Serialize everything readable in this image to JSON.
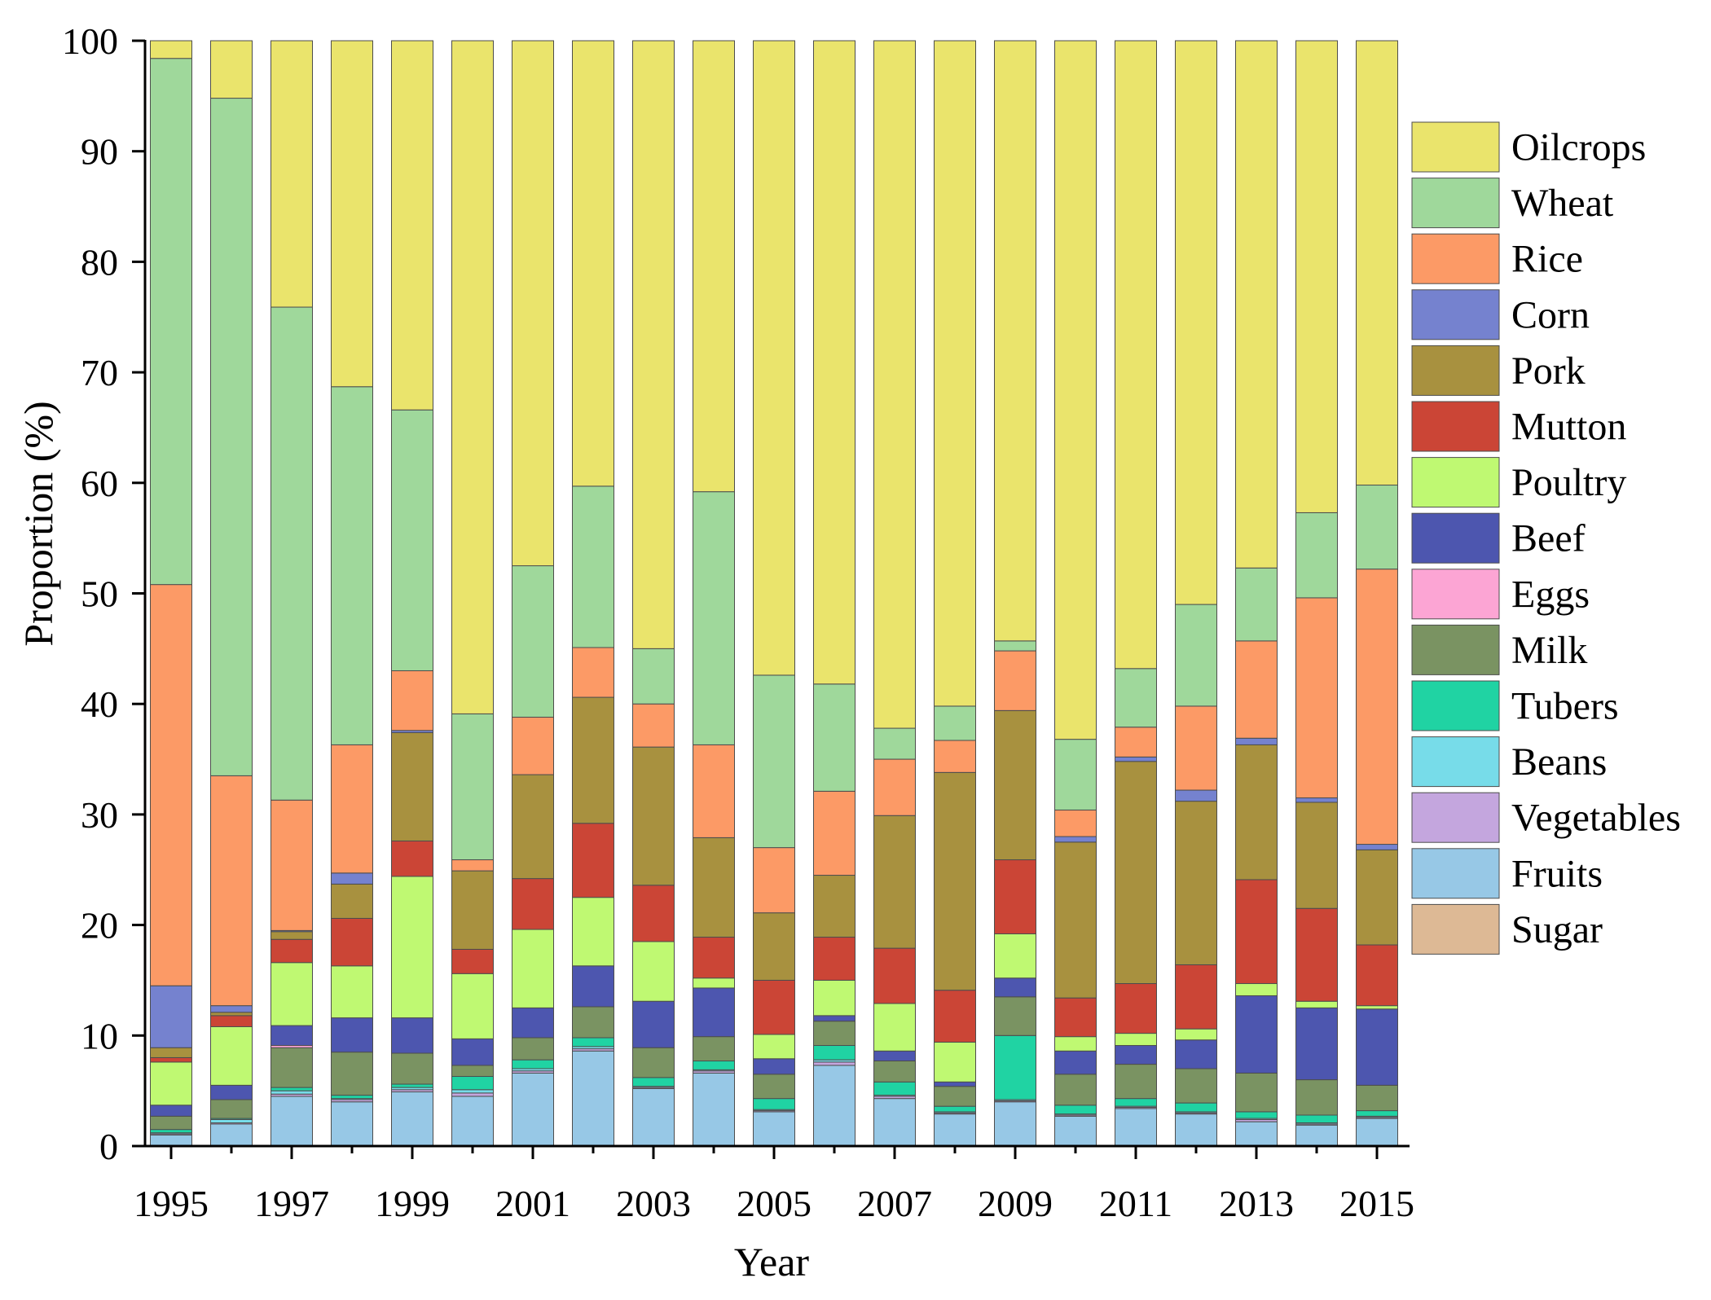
{
  "chart_data": {
    "type": "bar",
    "stacked": true,
    "xlabel": "Year",
    "ylabel": "Proportion (%)",
    "ylim": [
      0,
      100
    ],
    "y_ticks": [
      0,
      10,
      20,
      30,
      40,
      50,
      60,
      70,
      80,
      90,
      100
    ],
    "y_tick_labels": [
      "0",
      "10",
      "20",
      "30",
      "40",
      "50",
      "60",
      "70",
      "80",
      "90",
      "100"
    ],
    "x": [
      1995,
      1996,
      1997,
      1998,
      1999,
      2000,
      2001,
      2002,
      2003,
      2004,
      2005,
      2006,
      2007,
      2008,
      2009,
      2010,
      2011,
      2012,
      2013,
      2014,
      2015
    ],
    "x_tick_labels": [
      "1995",
      "1997",
      "1999",
      "2001",
      "2003",
      "2005",
      "2007",
      "2009",
      "2011",
      "2013",
      "2015"
    ],
    "grid": false,
    "legend_position": "right",
    "series": [
      {
        "name": "Sugar",
        "color": "#DDB995",
        "values": [
          0,
          0,
          0,
          0,
          0,
          0,
          0,
          0,
          0,
          0,
          0,
          0,
          0,
          0,
          0,
          0,
          0,
          0,
          0,
          0,
          0
        ]
      },
      {
        "name": "Fruits",
        "color": "#97C8E6",
        "values": [
          1.0,
          2.0,
          4.5,
          4.0,
          4.9,
          4.5,
          6.6,
          8.6,
          5.2,
          6.6,
          3.1,
          7.3,
          4.3,
          2.9,
          4.0,
          2.7,
          3.4,
          2.9,
          2.2,
          1.9,
          2.5
        ]
      },
      {
        "name": "Vegetables",
        "color": "#C4A6DE",
        "values": [
          0.1,
          0.1,
          0.2,
          0.2,
          0.2,
          0.3,
          0.2,
          0.2,
          0.1,
          0.2,
          0.1,
          0.3,
          0.2,
          0.1,
          0.1,
          0.1,
          0.1,
          0.1,
          0.2,
          0.1,
          0.1
        ]
      },
      {
        "name": "Beans",
        "color": "#77DCE9",
        "values": [
          0.1,
          0.3,
          0.3,
          0.1,
          0.2,
          0.3,
          0.2,
          0.2,
          0.1,
          0.1,
          0.1,
          0.2,
          0.1,
          0.1,
          0.1,
          0.1,
          0.1,
          0.1,
          0.1,
          0.1,
          0.1
        ]
      },
      {
        "name": "Tubers",
        "color": "#20D3A3",
        "values": [
          0.3,
          0.1,
          0.3,
          0.3,
          0.3,
          1.2,
          0.8,
          0.8,
          0.8,
          0.8,
          1.0,
          1.3,
          1.2,
          0.5,
          5.8,
          0.8,
          0.7,
          0.8,
          0.6,
          0.7,
          0.5
        ]
      },
      {
        "name": "Milk",
        "color": "#7A9362",
        "values": [
          1.2,
          1.7,
          3.6,
          3.9,
          2.8,
          1.0,
          2.0,
          2.8,
          2.7,
          2.2,
          2.2,
          2.2,
          1.9,
          1.8,
          3.5,
          2.8,
          3.1,
          3.1,
          3.5,
          3.2,
          2.3
        ]
      },
      {
        "name": "Eggs",
        "color": "#FCA5D4",
        "values": [
          0,
          0,
          0.2,
          0,
          0,
          0,
          0,
          0,
          0,
          0,
          0,
          0,
          0,
          0,
          0,
          0,
          0,
          0,
          0,
          0,
          0
        ]
      },
      {
        "name": "Beef",
        "color": "#4D56AF",
        "values": [
          1.0,
          1.3,
          1.8,
          3.1,
          3.2,
          2.4,
          2.7,
          3.7,
          4.2,
          4.4,
          1.4,
          0.5,
          0.9,
          0.4,
          1.7,
          2.1,
          1.7,
          2.6,
          7.0,
          6.5,
          6.9
        ]
      },
      {
        "name": "Poultry",
        "color": "#BFF972",
        "values": [
          3.9,
          5.3,
          5.7,
          4.7,
          12.8,
          5.9,
          7.1,
          6.2,
          5.4,
          0.9,
          2.2,
          3.2,
          4.3,
          3.6,
          4.0,
          1.3,
          1.1,
          1.0,
          1.1,
          0.6,
          0.3
        ]
      },
      {
        "name": "Mutton",
        "color": "#CB4536",
        "values": [
          0.4,
          1.0,
          2.1,
          4.3,
          3.2,
          2.2,
          4.6,
          6.7,
          5.1,
          3.7,
          4.9,
          3.9,
          5.0,
          4.7,
          6.7,
          3.5,
          4.5,
          5.8,
          9.4,
          8.4,
          5.5
        ]
      },
      {
        "name": "Pork",
        "color": "#A8913F",
        "values": [
          0.9,
          0.3,
          0.7,
          3.1,
          9.8,
          7.1,
          9.4,
          11.4,
          12.5,
          9.0,
          6.1,
          5.6,
          12.0,
          19.7,
          13.5,
          14.1,
          20.1,
          14.8,
          12.2,
          9.6,
          8.6
        ]
      },
      {
        "name": "Corn",
        "color": "#7582CF",
        "values": [
          5.6,
          0.6,
          0.1,
          1.0,
          0.2,
          0,
          0,
          0,
          0,
          0,
          0,
          0,
          0,
          0,
          0,
          0.5,
          0.4,
          1.0,
          0.6,
          0.4,
          0.5
        ]
      },
      {
        "name": "Rice",
        "color": "#FC9A66",
        "values": [
          36.3,
          20.8,
          11.8,
          11.6,
          5.4,
          1.0,
          5.2,
          4.5,
          3.9,
          8.4,
          5.9,
          7.6,
          5.1,
          2.9,
          5.4,
          2.4,
          2.7,
          7.6,
          8.8,
          18.1,
          24.9
        ]
      },
      {
        "name": "Wheat",
        "color": "#9FD89B",
        "values": [
          47.6,
          61.3,
          44.6,
          32.4,
          23.6,
          13.2,
          13.7,
          14.6,
          5.0,
          22.9,
          15.6,
          9.7,
          2.8,
          3.1,
          0.9,
          6.4,
          5.3,
          9.2,
          6.6,
          7.7,
          7.6
        ]
      },
      {
        "name": "Oilcrops",
        "color": "#EAE46C",
        "values": [
          1.6,
          5.2,
          24.1,
          31.3,
          33.4,
          60.9,
          47.5,
          40.3,
          55.0,
          40.8,
          57.4,
          58.2,
          62.2,
          60.2,
          54.3,
          63.2,
          56.8,
          51.0,
          47.7,
          42.7,
          40.2
        ]
      }
    ]
  }
}
